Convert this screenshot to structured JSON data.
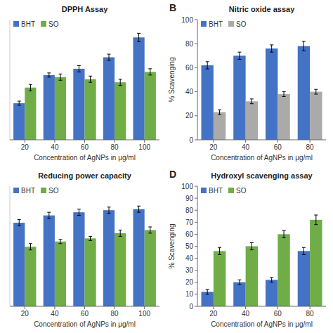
{
  "chart_data": [
    {
      "type": "bar",
      "title": "DPPH Assay",
      "xlabel": "Concentration of AgNPs in μg/ml",
      "categories": [
        "20",
        "40",
        "60",
        "80",
        "100"
      ],
      "series": [
        {
          "name": "BHT",
          "color": "#4472C4",
          "values": [
            35,
            62,
            68,
            79,
            98
          ],
          "errors": [
            2,
            2,
            3,
            3,
            4
          ]
        },
        {
          "name": "SO",
          "color": "#70AD47",
          "values": [
            50,
            60,
            58,
            55,
            65
          ],
          "errors": [
            3,
            3,
            3,
            3,
            3
          ]
        }
      ],
      "ylim": [
        0,
        115
      ],
      "tick_labels": "x",
      "legend": "upper left"
    },
    {
      "type": "bar",
      "title": "Nitric oxide assay",
      "xlabel": "Concentration of AgNPs in μg/ml",
      "ylabel": "% Scavenging",
      "categories": [
        "20",
        "40",
        "60",
        "80"
      ],
      "series": [
        {
          "name": "BHT",
          "color": "#4472C4",
          "values": [
            62,
            70,
            76,
            78
          ],
          "errors": [
            3,
            3,
            3,
            4
          ]
        },
        {
          "name": "SO",
          "color": "#AAAAAA",
          "values": [
            23,
            32,
            38,
            40
          ],
          "errors": [
            2,
            2,
            2,
            2
          ]
        }
      ],
      "ylim": [
        0,
        100
      ],
      "yticks": [
        0,
        20,
        40,
        60,
        80,
        100
      ],
      "legend": "upper left",
      "annotations": [
        "B"
      ]
    },
    {
      "type": "bar",
      "title": "Reducing power capacity",
      "xlabel": "Concentration of AgNPs in μg/ml",
      "categories": [
        "20",
        "40",
        "60",
        "80",
        "100"
      ],
      "series": [
        {
          "name": "BHT",
          "color": "#4472C4",
          "values": [
            80,
            87,
            90,
            92,
            93
          ],
          "errors": [
            3,
            3,
            3,
            3,
            3
          ]
        },
        {
          "name": "SO",
          "color": "#70AD47",
          "values": [
            57,
            62,
            65,
            70,
            73
          ],
          "errors": [
            3,
            2,
            2,
            3,
            3
          ]
        }
      ],
      "ylim": [
        0,
        115
      ],
      "tick_labels": "x",
      "legend": "upper left"
    },
    {
      "type": "bar",
      "title": "Hydroxyl scavenging assay",
      "xlabel": "Concentration of AgNPs in μg/ml",
      "ylabel": "% Scavenging",
      "categories": [
        "20",
        "40",
        "60",
        "80"
      ],
      "series": [
        {
          "name": "BHT",
          "color": "#4472C4",
          "values": [
            12,
            20,
            22,
            46
          ],
          "errors": [
            2,
            2,
            2,
            3
          ]
        },
        {
          "name": "SO",
          "color": "#70AD47",
          "values": [
            46,
            50,
            60,
            72
          ],
          "errors": [
            3,
            3,
            3,
            4
          ]
        }
      ],
      "ylim": [
        0,
        100
      ],
      "yticks": [
        0,
        10,
        20,
        30,
        40,
        50,
        60,
        70,
        80,
        90,
        100
      ],
      "legend": "upper left",
      "annotations": [
        "D"
      ]
    }
  ]
}
